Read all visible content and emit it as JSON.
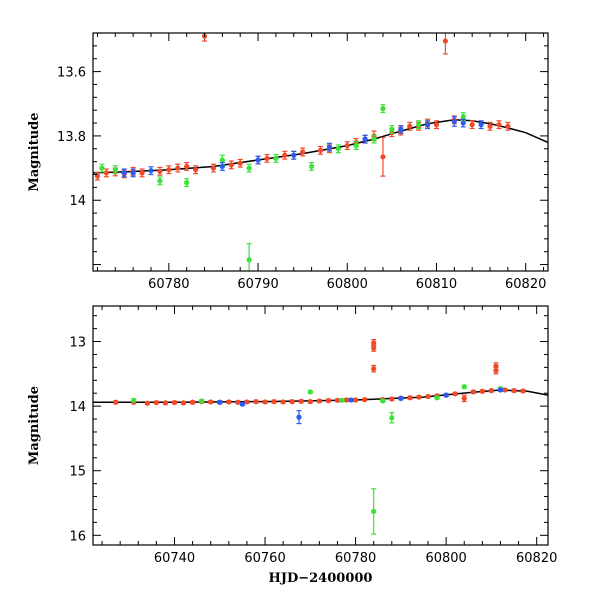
{
  "colors": {
    "red": "#f04a2a",
    "green": "#3ee03a",
    "blue": "#2a5cf0",
    "model": "#000000"
  },
  "chart_data": [
    {
      "type": "scatter",
      "panel": "top",
      "ylabel": "Magnitude",
      "xlabel": "",
      "xlim": [
        60771.5,
        60822.5
      ],
      "ylim": [
        14.22,
        13.48
      ],
      "y_inverted": true,
      "x_ticks": [
        60780,
        60790,
        60800,
        60810,
        60820
      ],
      "x_tick_labels": [
        "60780",
        "60790",
        "60800",
        "60810",
        "60820"
      ],
      "y_ticks": [
        13.6,
        13.8,
        14
      ],
      "y_tick_labels": [
        "13.6",
        "13.8",
        "14"
      ],
      "model": {
        "x": [
          60771.5,
          60775,
          60780,
          60785,
          60790,
          60795,
          60800,
          60803,
          60806,
          60809,
          60812,
          60814,
          60816,
          60818,
          60820,
          60822.5
        ],
        "y": [
          13.915,
          13.912,
          13.905,
          13.895,
          13.875,
          13.855,
          13.83,
          13.81,
          13.785,
          13.762,
          13.75,
          13.753,
          13.762,
          13.775,
          13.79,
          13.82
        ]
      },
      "series": [
        {
          "color_key": "red",
          "points": [
            {
              "x": 60772,
              "y": 13.925,
              "e": 0.012
            },
            {
              "x": 60773,
              "y": 13.915,
              "e": 0.012
            },
            {
              "x": 60774,
              "y": 13.912,
              "e": 0.012
            },
            {
              "x": 60775,
              "y": 13.918,
              "e": 0.012
            },
            {
              "x": 60776,
              "y": 13.91,
              "e": 0.012
            },
            {
              "x": 60777,
              "y": 13.915,
              "e": 0.012
            },
            {
              "x": 60779,
              "y": 13.91,
              "e": 0.012
            },
            {
              "x": 60780,
              "y": 13.905,
              "e": 0.012
            },
            {
              "x": 60781,
              "y": 13.9,
              "e": 0.012
            },
            {
              "x": 60782,
              "y": 13.895,
              "e": 0.012
            },
            {
              "x": 60783,
              "y": 13.905,
              "e": 0.012
            },
            {
              "x": 60784,
              "y": 13.49,
              "e": 0.015
            },
            {
              "x": 60785,
              "y": 13.9,
              "e": 0.012
            },
            {
              "x": 60787,
              "y": 13.89,
              "e": 0.012
            },
            {
              "x": 60788,
              "y": 13.885,
              "e": 0.012
            },
            {
              "x": 60790,
              "y": 13.875,
              "e": 0.012
            },
            {
              "x": 60791,
              "y": 13.87,
              "e": 0.012
            },
            {
              "x": 60793,
              "y": 13.86,
              "e": 0.012
            },
            {
              "x": 60794,
              "y": 13.86,
              "e": 0.012
            },
            {
              "x": 60795,
              "y": 13.85,
              "e": 0.012
            },
            {
              "x": 60797,
              "y": 13.845,
              "e": 0.012
            },
            {
              "x": 60798,
              "y": 13.84,
              "e": 0.012
            },
            {
              "x": 60800,
              "y": 13.83,
              "e": 0.012
            },
            {
              "x": 60801,
              "y": 13.82,
              "e": 0.012
            },
            {
              "x": 60802,
              "y": 13.81,
              "e": 0.012
            },
            {
              "x": 60803,
              "y": 13.8,
              "e": 0.015
            },
            {
              "x": 60804,
              "y": 13.865,
              "e": 0.06
            },
            {
              "x": 60805,
              "y": 13.79,
              "e": 0.012
            },
            {
              "x": 60806,
              "y": 13.785,
              "e": 0.012
            },
            {
              "x": 60807,
              "y": 13.77,
              "e": 0.012
            },
            {
              "x": 60808,
              "y": 13.77,
              "e": 0.012
            },
            {
              "x": 60809,
              "y": 13.76,
              "e": 0.012
            },
            {
              "x": 60810,
              "y": 13.765,
              "e": 0.012
            },
            {
              "x": 60811,
              "y": 13.505,
              "e": 0.04
            },
            {
              "x": 60812,
              "y": 13.75,
              "e": 0.012
            },
            {
              "x": 60814,
              "y": 13.765,
              "e": 0.012
            },
            {
              "x": 60816,
              "y": 13.77,
              "e": 0.012
            },
            {
              "x": 60817,
              "y": 13.765,
              "e": 0.012
            },
            {
              "x": 60818,
              "y": 13.77,
              "e": 0.012
            }
          ]
        },
        {
          "color_key": "green",
          "points": [
            {
              "x": 60772.5,
              "y": 13.9,
              "e": 0.012
            },
            {
              "x": 60774,
              "y": 13.905,
              "e": 0.012
            },
            {
              "x": 60779,
              "y": 13.94,
              "e": 0.012
            },
            {
              "x": 60782,
              "y": 13.945,
              "e": 0.012
            },
            {
              "x": 60786,
              "y": 13.875,
              "e": 0.015
            },
            {
              "x": 60789,
              "y": 13.9,
              "e": 0.012
            },
            {
              "x": 60789,
              "y": 14.185,
              "e": 0.05
            },
            {
              "x": 60792,
              "y": 13.87,
              "e": 0.012
            },
            {
              "x": 60796,
              "y": 13.895,
              "e": 0.012
            },
            {
              "x": 60799,
              "y": 13.84,
              "e": 0.012
            },
            {
              "x": 60801,
              "y": 13.83,
              "e": 0.012
            },
            {
              "x": 60803,
              "y": 13.81,
              "e": 0.012
            },
            {
              "x": 60804,
              "y": 13.715,
              "e": 0.012
            },
            {
              "x": 60805,
              "y": 13.78,
              "e": 0.012
            },
            {
              "x": 60808,
              "y": 13.765,
              "e": 0.012
            },
            {
              "x": 60813,
              "y": 13.74,
              "e": 0.012
            }
          ]
        },
        {
          "color_key": "blue",
          "points": [
            {
              "x": 60775,
              "y": 13.915,
              "e": 0.012
            },
            {
              "x": 60776,
              "y": 13.915,
              "e": 0.012
            },
            {
              "x": 60778,
              "y": 13.908,
              "e": 0.012
            },
            {
              "x": 60786,
              "y": 13.895,
              "e": 0.012
            },
            {
              "x": 60790,
              "y": 13.875,
              "e": 0.012
            },
            {
              "x": 60794,
              "y": 13.86,
              "e": 0.012
            },
            {
              "x": 60798,
              "y": 13.835,
              "e": 0.012
            },
            {
              "x": 60802,
              "y": 13.81,
              "e": 0.012
            },
            {
              "x": 60806,
              "y": 13.78,
              "e": 0.012
            },
            {
              "x": 60809,
              "y": 13.765,
              "e": 0.012
            },
            {
              "x": 60812,
              "y": 13.755,
              "e": 0.015
            },
            {
              "x": 60813,
              "y": 13.76,
              "e": 0.012
            },
            {
              "x": 60815,
              "y": 13.765,
              "e": 0.012
            }
          ]
        }
      ]
    },
    {
      "type": "scatter",
      "panel": "bottom",
      "ylabel": "Magnitude",
      "xlabel": "HJD−2400000",
      "xlim": [
        60722,
        60822.5
      ],
      "ylim": [
        16.15,
        12.45
      ],
      "y_inverted": true,
      "x_ticks": [
        60740,
        60760,
        60780,
        60800,
        60820
      ],
      "x_tick_labels": [
        "60740",
        "60760",
        "60780",
        "60800",
        "60820"
      ],
      "y_ticks": [
        13,
        14,
        15,
        16
      ],
      "y_tick_labels": [
        "13",
        "14",
        "15",
        "16"
      ],
      "model": {
        "x": [
          60722,
          60740,
          60760,
          60780,
          60795,
          60805,
          60812,
          60818,
          60822.5
        ],
        "y": [
          13.94,
          13.94,
          13.93,
          13.905,
          13.86,
          13.79,
          13.75,
          13.77,
          13.83
        ]
      },
      "series": [
        {
          "color_key": "red",
          "points": [
            {
              "x": 60727,
              "y": 13.94,
              "e": 0.02
            },
            {
              "x": 60731,
              "y": 13.94,
              "e": 0.02
            },
            {
              "x": 60734,
              "y": 13.955,
              "e": 0.02
            },
            {
              "x": 60736,
              "y": 13.945,
              "e": 0.02
            },
            {
              "x": 60738,
              "y": 13.95,
              "e": 0.02
            },
            {
              "x": 60740,
              "y": 13.945,
              "e": 0.02
            },
            {
              "x": 60742,
              "y": 13.95,
              "e": 0.02
            },
            {
              "x": 60744,
              "y": 13.94,
              "e": 0.02
            },
            {
              "x": 60746,
              "y": 13.93,
              "e": 0.02
            },
            {
              "x": 60748,
              "y": 13.935,
              "e": 0.02
            },
            {
              "x": 60750,
              "y": 13.94,
              "e": 0.02
            },
            {
              "x": 60752,
              "y": 13.935,
              "e": 0.02
            },
            {
              "x": 60754,
              "y": 13.94,
              "e": 0.02
            },
            {
              "x": 60756,
              "y": 13.935,
              "e": 0.02
            },
            {
              "x": 60758,
              "y": 13.93,
              "e": 0.02
            },
            {
              "x": 60760,
              "y": 13.935,
              "e": 0.02
            },
            {
              "x": 60762,
              "y": 13.93,
              "e": 0.02
            },
            {
              "x": 60764,
              "y": 13.935,
              "e": 0.02
            },
            {
              "x": 60766,
              "y": 13.93,
              "e": 0.02
            },
            {
              "x": 60768,
              "y": 13.925,
              "e": 0.02
            },
            {
              "x": 60770,
              "y": 13.93,
              "e": 0.02
            },
            {
              "x": 60772,
              "y": 13.92,
              "e": 0.02
            },
            {
              "x": 60774,
              "y": 13.915,
              "e": 0.02
            },
            {
              "x": 60776,
              "y": 13.91,
              "e": 0.02
            },
            {
              "x": 60778,
              "y": 13.905,
              "e": 0.02
            },
            {
              "x": 60780,
              "y": 13.905,
              "e": 0.02
            },
            {
              "x": 60782,
              "y": 13.9,
              "e": 0.02
            },
            {
              "x": 60784,
              "y": 13.02,
              "e": 0.05
            },
            {
              "x": 60784,
              "y": 13.1,
              "e": 0.05
            },
            {
              "x": 60784,
              "y": 13.42,
              "e": 0.05
            },
            {
              "x": 60786,
              "y": 13.9,
              "e": 0.02
            },
            {
              "x": 60788,
              "y": 13.89,
              "e": 0.02
            },
            {
              "x": 60790,
              "y": 13.875,
              "e": 0.02
            },
            {
              "x": 60792,
              "y": 13.87,
              "e": 0.02
            },
            {
              "x": 60794,
              "y": 13.86,
              "e": 0.02
            },
            {
              "x": 60796,
              "y": 13.85,
              "e": 0.02
            },
            {
              "x": 60798,
              "y": 13.84,
              "e": 0.02
            },
            {
              "x": 60800,
              "y": 13.83,
              "e": 0.02
            },
            {
              "x": 60802,
              "y": 13.81,
              "e": 0.02
            },
            {
              "x": 60804,
              "y": 13.88,
              "e": 0.05
            },
            {
              "x": 60806,
              "y": 13.78,
              "e": 0.02
            },
            {
              "x": 60808,
              "y": 13.77,
              "e": 0.02
            },
            {
              "x": 60810,
              "y": 13.76,
              "e": 0.02
            },
            {
              "x": 60811,
              "y": 13.45,
              "e": 0.05
            },
            {
              "x": 60811,
              "y": 13.38,
              "e": 0.05
            },
            {
              "x": 60813,
              "y": 13.75,
              "e": 0.02
            },
            {
              "x": 60815,
              "y": 13.76,
              "e": 0.02
            },
            {
              "x": 60817,
              "y": 13.765,
              "e": 0.02
            }
          ]
        },
        {
          "color_key": "green",
          "points": [
            {
              "x": 60731,
              "y": 13.91,
              "e": 0.02
            },
            {
              "x": 60746,
              "y": 13.92,
              "e": 0.02
            },
            {
              "x": 60770,
              "y": 13.78,
              "e": 0.02
            },
            {
              "x": 60777,
              "y": 13.91,
              "e": 0.02
            },
            {
              "x": 60784,
              "y": 15.63,
              "e": 0.35
            },
            {
              "x": 60786,
              "y": 13.92,
              "e": 0.02
            },
            {
              "x": 60788,
              "y": 14.18,
              "e": 0.08
            },
            {
              "x": 60798,
              "y": 13.87,
              "e": 0.02
            },
            {
              "x": 60804,
              "y": 13.7,
              "e": 0.02
            },
            {
              "x": 60812,
              "y": 13.73,
              "e": 0.02
            }
          ]
        },
        {
          "color_key": "blue",
          "points": [
            {
              "x": 60750,
              "y": 13.94,
              "e": 0.02
            },
            {
              "x": 60755,
              "y": 13.97,
              "e": 0.02
            },
            {
              "x": 60767.5,
              "y": 14.17,
              "e": 0.1
            },
            {
              "x": 60779,
              "y": 13.905,
              "e": 0.02
            },
            {
              "x": 60790,
              "y": 13.88,
              "e": 0.02
            },
            {
              "x": 60800,
              "y": 13.83,
              "e": 0.02
            },
            {
              "x": 60812,
              "y": 13.75,
              "e": 0.02
            }
          ]
        }
      ]
    }
  ]
}
